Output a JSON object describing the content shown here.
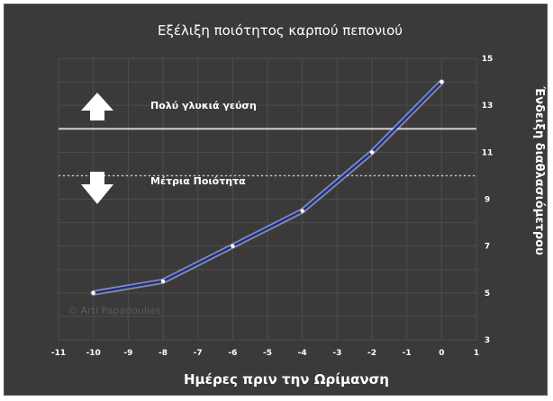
{
  "chart_data": {
    "type": "line",
    "title": "Εξέλιξη ποιότητος καρπού πεπονιού",
    "xlabel": "Ημέρες πριν την Ωρίμανση",
    "ylabel": "Ένδειξη διαθλασιόμετρου",
    "xlim": [
      -11,
      1
    ],
    "ylim": [
      3,
      15
    ],
    "x_ticks": [
      "-11",
      "-10",
      "-9",
      "-8",
      "-7",
      "-6",
      "-5",
      "-4",
      "-3",
      "-2",
      "-1",
      "0",
      "1"
    ],
    "y_ticks": [
      "3",
      "5",
      "7",
      "9",
      "11",
      "13",
      "15"
    ],
    "y_axis_side": "right",
    "grid": true,
    "series": [
      {
        "x": [
          -10,
          -8,
          -6,
          -4,
          -2,
          0
        ],
        "values": [
          5,
          5.5,
          7,
          8.5,
          11,
          14
        ],
        "color": "#1e2f8c"
      }
    ],
    "reference_lines": [
      {
        "y": 12,
        "style": "solid",
        "color": "#cfcfcf"
      },
      {
        "y": 10,
        "style": "dotted",
        "color": "#cfcfcf"
      }
    ],
    "annotations": [
      {
        "text": "Πολύ γλυκιά γεύση",
        "icon": "arrow-up-icon"
      },
      {
        "text": "Μέτρια Ποιότητα",
        "icon": "arrow-down-icon"
      }
    ],
    "watermark": "© Arti Papadoulias"
  },
  "colors": {
    "background": "#3a3a3a",
    "grid": "#4d4d4d",
    "text": "#ffffff",
    "line_glow": "#c8d0ff"
  }
}
